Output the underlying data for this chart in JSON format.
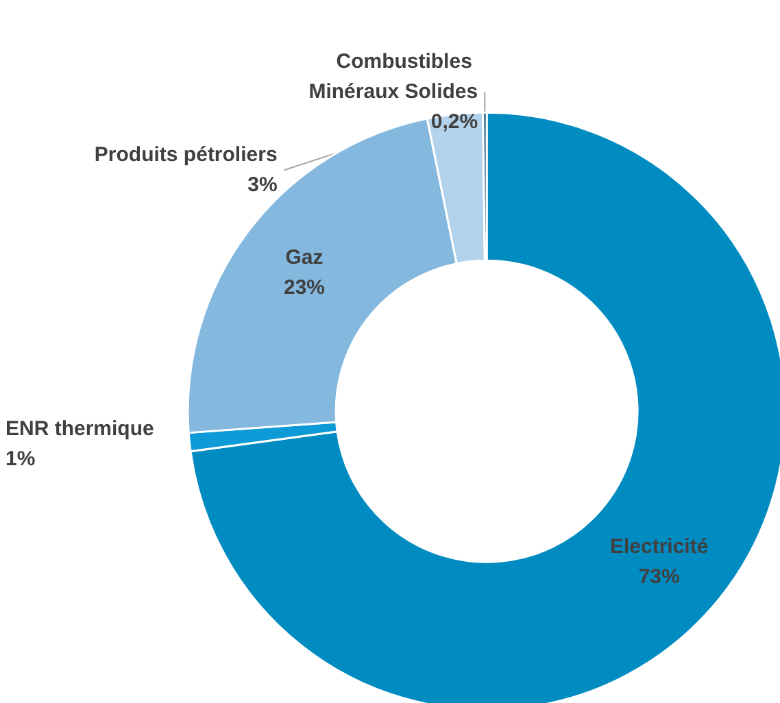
{
  "chart_data": {
    "type": "donut",
    "categories": [
      "Electricité",
      "ENR thermique",
      "Gaz",
      "Produits pétroliers",
      "Combustibles Minéraux Solides"
    ],
    "values": [
      73,
      1,
      23,
      3,
      0.2
    ],
    "value_labels": [
      "73%",
      "1%",
      "23%",
      "3%",
      "0,2%"
    ],
    "colors": [
      "#008bc1",
      "#0e9ad6",
      "#85b8df",
      "#b3d2ec",
      "#1f5f8b"
    ],
    "legend": false
  }
}
